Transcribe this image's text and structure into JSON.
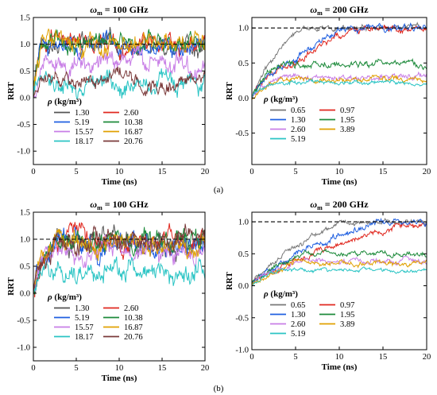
{
  "figure": {
    "sub_labels": [
      "(a)",
      "(b)"
    ]
  },
  "chart_data": [
    {
      "type": "line",
      "panel": "a-left",
      "title_symbol": "ω",
      "title_sub": "m",
      "title_rest": " = 100 GHz",
      "xlabel": "Time (ns)",
      "ylabel": "RRT",
      "xlim": [
        0,
        20
      ],
      "ylim": [
        -1.25,
        1.5
      ],
      "x_ticks": [
        0,
        5,
        10,
        15,
        20
      ],
      "y_ticks": [
        -1.0,
        -0.5,
        0.0,
        0.5,
        1.0,
        1.5
      ],
      "y_tick_labels": [
        "-1.0",
        "-0.5",
        "0.0",
        "0.5",
        "1.0",
        "1.5"
      ],
      "reference_line": 1.0,
      "legend_title_symbol": "ρ",
      "legend_title_rest": " (kg/m³)",
      "legend_position": "lower-left",
      "series": [
        {
          "name": "1.30",
          "color": "#555555",
          "plateau": 1.0,
          "rise": 1.0,
          "noise": 0.18
        },
        {
          "name": "2.60",
          "color": "#e0281f",
          "plateau": 1.0,
          "rise": 1.0,
          "noise": 0.18
        },
        {
          "name": "5.19",
          "color": "#1f5fe0",
          "plateau": 1.0,
          "rise": 1.0,
          "noise": 0.18
        },
        {
          "name": "10.38",
          "color": "#1c8a3a",
          "plateau": 1.0,
          "rise": 1.0,
          "noise": 0.18
        },
        {
          "name": "15.57",
          "color": "#c87ee6",
          "plateau": 0.62,
          "rise": 1.0,
          "noise": 0.2
        },
        {
          "name": "16.87",
          "color": "#e0a000",
          "plateau": 1.0,
          "rise": 1.0,
          "noise": 0.2
        },
        {
          "name": "18.17",
          "color": "#2ac4c4",
          "plateau": 0.25,
          "rise": 1.0,
          "noise": 0.2
        },
        {
          "name": "20.76",
          "color": "#7a3a3a",
          "plateau": 0.32,
          "rise": 1.0,
          "noise": 0.15
        }
      ]
    },
    {
      "type": "line",
      "panel": "a-right",
      "title_symbol": "ω",
      "title_sub": "m",
      "title_rest": " = 200 GHz",
      "xlabel": "Time (ns)",
      "ylabel": "RRT",
      "xlim": [
        0,
        20
      ],
      "ylim": [
        -0.95,
        1.15
      ],
      "x_ticks": [
        0,
        5,
        10,
        15,
        20
      ],
      "y_ticks": [
        -0.5,
        0.0,
        0.5,
        1.0
      ],
      "y_tick_labels": [
        "-0.5",
        "0.0",
        "0.5",
        "1.0"
      ],
      "reference_line": 1.0,
      "legend_title_symbol": "ρ",
      "legend_title_rest": " (kg/m³)",
      "legend_position": "lower-left",
      "series": [
        {
          "name": "0.65",
          "color": "#777777",
          "plateau": 1.0,
          "rise": 5.5,
          "noise": 0.04
        },
        {
          "name": "0.97",
          "color": "#e0281f",
          "plateau": 0.97,
          "rise": 11.5,
          "noise": 0.05
        },
        {
          "name": "1.30",
          "color": "#1f5fe0",
          "plateau": 1.0,
          "rise": 10.5,
          "noise": 0.05
        },
        {
          "name": "1.95",
          "color": "#1c8a3a",
          "plateau": 0.48,
          "rise": 3.0,
          "noise": 0.05
        },
        {
          "name": "2.60",
          "color": "#c87ee6",
          "plateau": 0.3,
          "rise": 3.0,
          "noise": 0.04
        },
        {
          "name": "3.89",
          "color": "#e0a000",
          "plateau": 0.27,
          "rise": 3.0,
          "noise": 0.04
        },
        {
          "name": "5.19",
          "color": "#2ac4c4",
          "plateau": 0.22,
          "rise": 2.0,
          "noise": 0.03
        }
      ]
    },
    {
      "type": "line",
      "panel": "b-left",
      "title_symbol": "ω",
      "title_sub": "m",
      "title_rest": " = 100 GHz",
      "xlabel": "Time (ns)",
      "ylabel": "RRT",
      "xlim": [
        0,
        20
      ],
      "ylim": [
        -1.25,
        1.5
      ],
      "x_ticks": [
        0,
        5,
        10,
        15,
        20
      ],
      "y_ticks": [
        -1.0,
        -0.5,
        0.0,
        0.5,
        1.0,
        1.5
      ],
      "y_tick_labels": [
        "-1.0",
        "-0.5",
        "0.0",
        "0.5",
        "1.0",
        "1.5"
      ],
      "reference_line": 1.0,
      "legend_title_symbol": "ρ",
      "legend_title_rest": " (kg/m³)",
      "legend_position": "lower-left",
      "series": [
        {
          "name": "1.30",
          "color": "#555555",
          "plateau": 0.9,
          "rise": 3.0,
          "noise": 0.22
        },
        {
          "name": "2.60",
          "color": "#e0281f",
          "plateau": 0.95,
          "rise": 2.5,
          "noise": 0.2
        },
        {
          "name": "5.19",
          "color": "#1f5fe0",
          "plateau": 0.9,
          "rise": 3.0,
          "noise": 0.22
        },
        {
          "name": "10.38",
          "color": "#1c8a3a",
          "plateau": 0.95,
          "rise": 2.5,
          "noise": 0.2
        },
        {
          "name": "15.57",
          "color": "#c87ee6",
          "plateau": 0.75,
          "rise": 2.0,
          "noise": 0.22
        },
        {
          "name": "16.87",
          "color": "#e0a000",
          "plateau": 0.95,
          "rise": 2.5,
          "noise": 0.2
        },
        {
          "name": "18.17",
          "color": "#2ac4c4",
          "plateau": 0.4,
          "rise": 2.0,
          "noise": 0.2
        },
        {
          "name": "20.76",
          "color": "#7a3a3a",
          "plateau": 0.95,
          "rise": 3.0,
          "noise": 0.2
        }
      ]
    },
    {
      "type": "line",
      "panel": "b-right",
      "title_symbol": "ω",
      "title_sub": "m",
      "title_rest": " = 200 GHz",
      "xlabel": "Time (ns)",
      "ylabel": "RRT",
      "xlim": [
        0,
        20
      ],
      "ylim": [
        -1.0,
        1.15
      ],
      "x_ticks": [
        0,
        5,
        10,
        15,
        20
      ],
      "y_ticks": [
        -1.0,
        -0.5,
        0.0,
        0.5,
        1.0
      ],
      "y_tick_labels": [
        "-1.0",
        "-0.5",
        "0.0",
        "0.5",
        "1.0"
      ],
      "reference_line": 1.0,
      "legend_title_symbol": "ρ",
      "legend_title_rest": " (kg/m³)",
      "legend_position": "lower-left",
      "series": [
        {
          "name": "0.65",
          "color": "#777777",
          "plateau": 1.0,
          "rise": 10.0,
          "noise": 0.04
        },
        {
          "name": "0.97",
          "color": "#e0281f",
          "plateau": 0.97,
          "rise": 18.0,
          "noise": 0.05
        },
        {
          "name": "1.30",
          "color": "#1f5fe0",
          "plateau": 1.0,
          "rise": 14.0,
          "noise": 0.05
        },
        {
          "name": "1.95",
          "color": "#1c8a3a",
          "plateau": 0.5,
          "rise": 6.0,
          "noise": 0.04
        },
        {
          "name": "2.60",
          "color": "#c87ee6",
          "plateau": 0.38,
          "rise": 5.0,
          "noise": 0.04
        },
        {
          "name": "3.89",
          "color": "#e0a000",
          "plateau": 0.35,
          "rise": 5.0,
          "noise": 0.04
        },
        {
          "name": "5.19",
          "color": "#2ac4c4",
          "plateau": 0.24,
          "rise": 3.0,
          "noise": 0.03
        }
      ]
    }
  ]
}
